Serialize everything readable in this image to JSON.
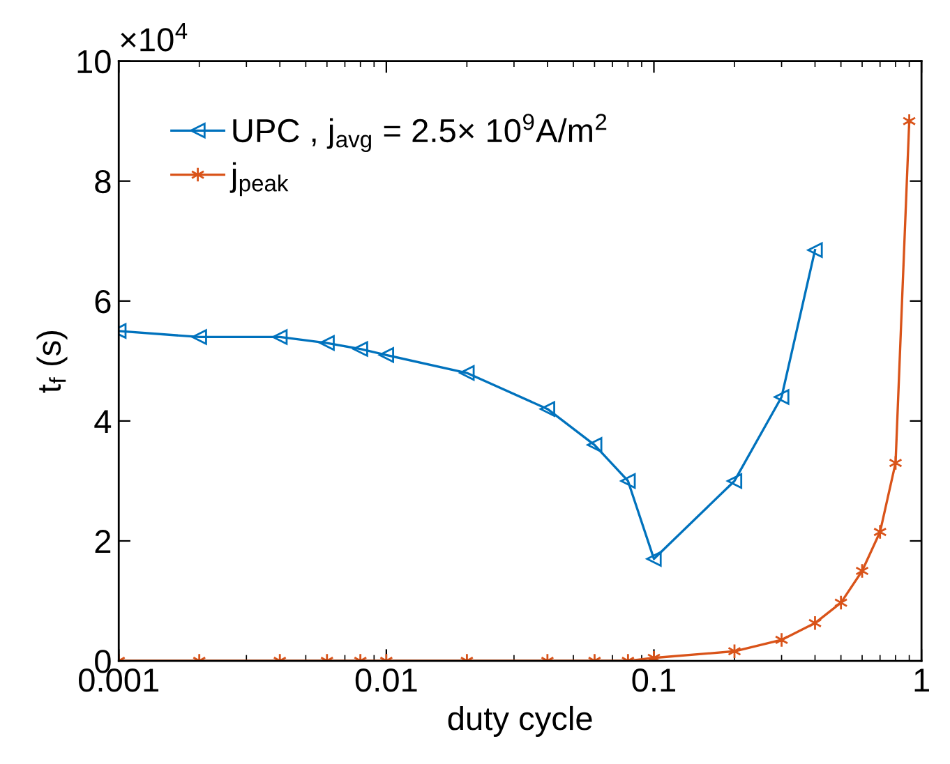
{
  "chart_data": {
    "type": "line",
    "xlabel": "duty cycle",
    "ylabel": "t$_{f}$ (s)",
    "log": "x",
    "xlim": [
      0.001,
      1
    ],
    "xticks": [
      0.001,
      0.01,
      0.1,
      1
    ],
    "ylim": [
      0,
      10
    ],
    "yticks": [
      0,
      2,
      4,
      6,
      8,
      10
    ],
    "annotations": [
      "×10$^{4}$"
    ],
    "grid": false,
    "legend": "top left",
    "series": [
      {
        "name": "UPC , j$_{avg}$ = 2.5× 10$^{9}$A/m$^{2}$",
        "color": "#0072bd",
        "marker": "triangle",
        "x": [
          0.001,
          0.002,
          0.004,
          0.006,
          0.008,
          0.01,
          0.02,
          0.04,
          0.06,
          0.08,
          0.1,
          0.2,
          0.3,
          0.4
        ],
        "values": [
          5.5,
          5.4,
          5.4,
          5.3,
          5.2,
          5.1,
          4.8,
          4.2,
          3.6,
          3.0,
          1.7,
          3.0,
          4.4,
          6.85
        ]
      },
      {
        "name": "j$_{peak}$",
        "color": "#d95319",
        "marker": "cross",
        "x": [
          0.001,
          0.002,
          0.004,
          0.006,
          0.008,
          0.01,
          0.02,
          0.04,
          0.06,
          0.08,
          0.1,
          0.2,
          0.3,
          0.4,
          0.5,
          0.6,
          0.7,
          0.8,
          0.9
        ],
        "values": [
          0,
          0,
          0,
          0,
          0,
          0,
          0,
          0,
          0,
          0,
          0.05,
          0.16,
          0.35,
          0.63,
          0.97,
          1.5,
          2.15,
          3.3,
          9.0
        ]
      }
    ]
  }
}
